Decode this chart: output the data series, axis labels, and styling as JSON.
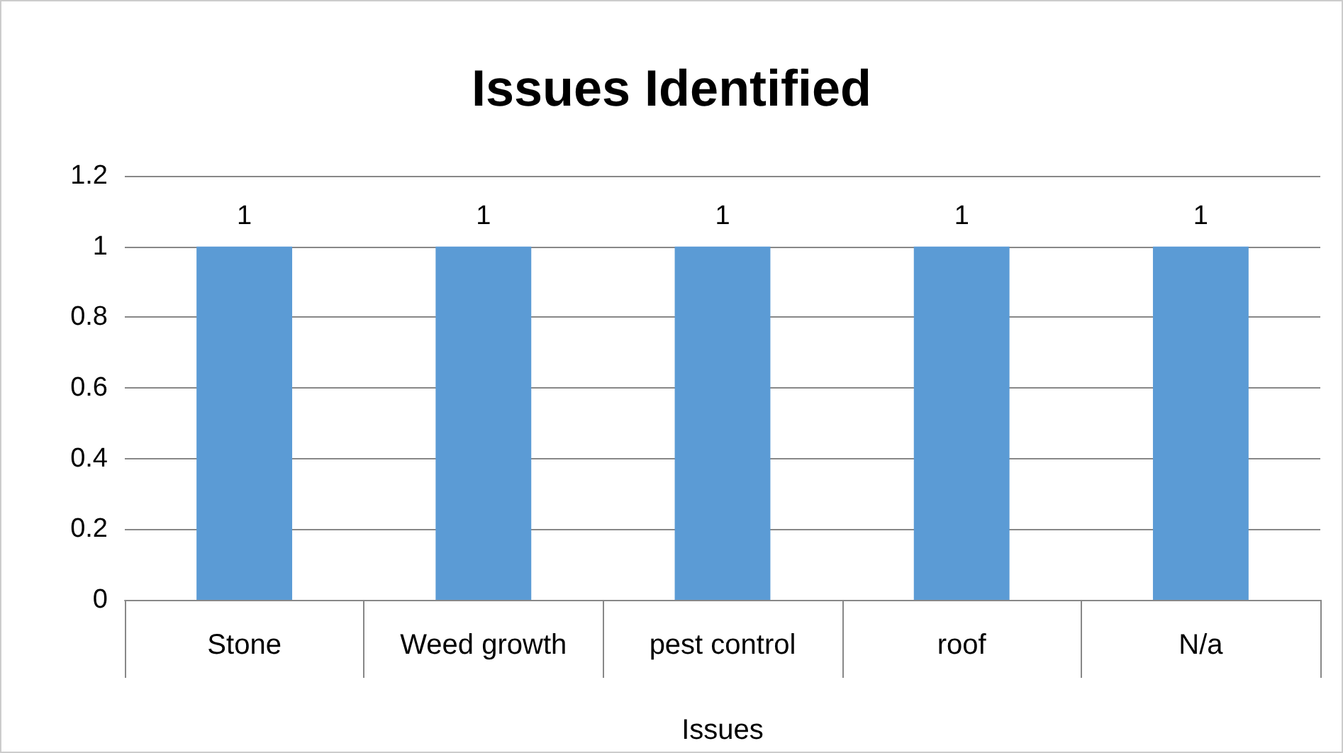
{
  "chart_data": {
    "type": "bar",
    "title": "Issues Identified",
    "xlabel": "Issues",
    "categories": [
      "Stone",
      "Weed growth",
      "pest control",
      "roof",
      "N/a"
    ],
    "values": [
      1,
      1,
      1,
      1,
      1
    ],
    "color": "#5b9bd5",
    "ylim": [
      0,
      1.2
    ],
    "yticks": [
      0,
      0.2,
      0.4,
      0.6,
      0.8,
      1,
      1.2
    ],
    "grid": "y",
    "data_labels": true
  }
}
